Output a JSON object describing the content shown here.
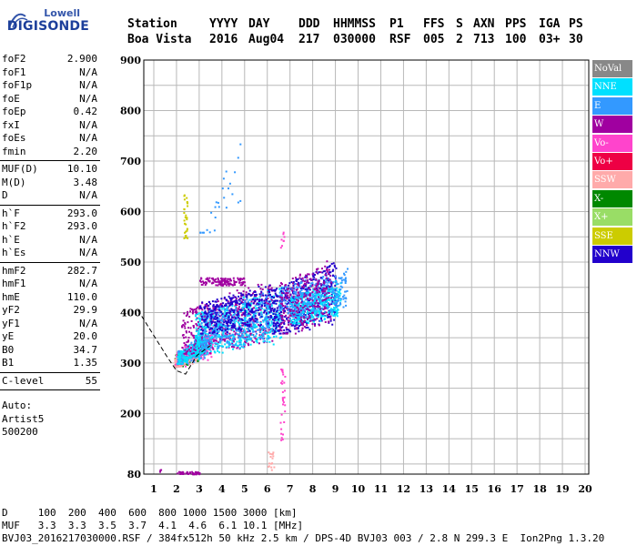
{
  "logo": {
    "line1": "Lowell",
    "line2": "DIGISONDE"
  },
  "header": {
    "row1": [
      "Station",
      "YYYY",
      "DAY",
      "DDD",
      "HHMMSS",
      "P1",
      "FFS",
      "S",
      "AXN",
      "PPS",
      "IGA",
      "PS"
    ],
    "row2": [
      "Boa Vista",
      "2016",
      "Aug04",
      "217",
      "030000",
      "RSF",
      "005",
      "2",
      "713",
      "100",
      "03+",
      "30"
    ]
  },
  "params": {
    "group1": [
      {
        "label": "foF2",
        "value": "2.900"
      },
      {
        "label": "foF1",
        "value": "N/A"
      },
      {
        "label": "foF1p",
        "value": "N/A"
      },
      {
        "label": "foE",
        "value": "N/A"
      },
      {
        "label": "foEp",
        "value": "0.42"
      },
      {
        "label": "fxI",
        "value": "N/A"
      },
      {
        "label": "foEs",
        "value": "N/A"
      },
      {
        "label": "fmin",
        "value": "2.20"
      }
    ],
    "group2": [
      {
        "label": "MUF(D)",
        "value": "10.10"
      },
      {
        "label": "M(D)",
        "value": "3.48"
      },
      {
        "label": "D",
        "value": "N/A"
      }
    ],
    "group3": [
      {
        "label": "h`F",
        "value": "293.0"
      },
      {
        "label": "h`F2",
        "value": "293.0"
      },
      {
        "label": "h`E",
        "value": "N/A"
      },
      {
        "label": "h`Es",
        "value": "N/A"
      }
    ],
    "group4": [
      {
        "label": "hmF2",
        "value": "282.7"
      },
      {
        "label": "hmF1",
        "value": "N/A"
      },
      {
        "label": "hmE",
        "value": "110.0"
      },
      {
        "label": "yF2",
        "value": "29.9"
      },
      {
        "label": "yF1",
        "value": "N/A"
      },
      {
        "label": "yE",
        "value": "20.0"
      },
      {
        "label": "B0",
        "value": "34.7"
      },
      {
        "label": "B1",
        "value": "1.35"
      }
    ],
    "group5": [
      {
        "label": "C-level",
        "value": "55"
      }
    ],
    "autoscale": {
      "line1": "Auto:",
      "line2": "Artist5",
      "line3": "500200"
    }
  },
  "legend": [
    {
      "label": "NoVal",
      "bg": "#888888",
      "fg": "#ffffff"
    },
    {
      "label": "NNE",
      "bg": "#00e0ff",
      "fg": "#ffffff"
    },
    {
      "label": "E",
      "bg": "#3399ff",
      "fg": "#ffffff"
    },
    {
      "label": "W",
      "bg": "#a000a0",
      "fg": "#ffffff"
    },
    {
      "label": "Vo-",
      "bg": "#ff44cc",
      "fg": "#ffffff"
    },
    {
      "label": "Vo+",
      "bg": "#ee0044",
      "fg": "#ffffff"
    },
    {
      "label": "SSW",
      "bg": "#ffaaaa",
      "fg": "#ffffff"
    },
    {
      "label": "X-",
      "bg": "#008800",
      "fg": "#ffffff"
    },
    {
      "label": "X+",
      "bg": "#99dd66",
      "fg": "#ffffff"
    },
    {
      "label": "SSE",
      "bg": "#cccc00",
      "fg": "#ffffff"
    },
    {
      "label": "NNW",
      "bg": "#2200cc",
      "fg": "#ffffff"
    }
  ],
  "footer": {
    "line1": "D     100  200  400  600  800 1000 1500 3000 [km]",
    "line2": "MUF   3.3  3.3  3.5  3.7  4.1  4.6  6.1 10.1 [MHz]",
    "line3": "BVJ03_2016217030000.RSF / 384fx512h 50 kHz 2.5 km / DPS-4D BVJ03 003 / 2.8 N 299.3 E  Ion2Png 1.3.20"
  },
  "chart_data": {
    "type": "scatter",
    "title": "",
    "xlabel": "",
    "ylabel": "",
    "xlim": [
      1,
      20
    ],
    "ylim": [
      80,
      900
    ],
    "xticks": [
      1,
      2,
      3,
      4,
      5,
      6,
      7,
      8,
      9,
      10,
      11,
      12,
      13,
      14,
      15,
      16,
      17,
      18,
      19,
      20
    ],
    "yticks": [
      80,
      200,
      300,
      400,
      500,
      600,
      700,
      800,
      900
    ],
    "grid": true,
    "legend_position": "right",
    "clusters": [
      {
        "series": "X-",
        "x": [
          1.9,
          3.2
        ],
        "y": [
          295,
          360
        ],
        "n": 160,
        "trend": 0.55
      },
      {
        "series": "Vo-",
        "x": [
          1.9,
          3.6
        ],
        "y": [
          295,
          380
        ],
        "n": 220,
        "trend": 0.55
      },
      {
        "series": "SSW",
        "x": [
          1.9,
          3.0
        ],
        "y": [
          295,
          340
        ],
        "n": 120,
        "trend": 0.5
      },
      {
        "series": "E",
        "x": [
          2.0,
          3.4
        ],
        "y": [
          300,
          370
        ],
        "n": 200,
        "trend": 0.55
      },
      {
        "series": "NNE",
        "x": [
          2.0,
          3.2
        ],
        "y": [
          300,
          360
        ],
        "n": 160,
        "trend": 0.55
      },
      {
        "series": "W",
        "x": [
          2.2,
          6.2
        ],
        "y": [
          320,
          470
        ],
        "n": 520,
        "trend": 0.35
      },
      {
        "series": "NNE",
        "x": [
          2.8,
          6.6
        ],
        "y": [
          320,
          460
        ],
        "n": 520,
        "trend": 0.35
      },
      {
        "series": "E",
        "x": [
          3.0,
          6.2
        ],
        "y": [
          330,
          450
        ],
        "n": 300,
        "trend": 0.35
      },
      {
        "series": "NNW",
        "x": [
          3.0,
          6.2
        ],
        "y": [
          360,
          460
        ],
        "n": 320,
        "trend": 0.3
      },
      {
        "series": "NNW",
        "x": [
          6.2,
          9.0
        ],
        "y": [
          360,
          510
        ],
        "n": 520,
        "trend": 0.35
      },
      {
        "series": "NNE",
        "x": [
          7.0,
          9.2
        ],
        "y": [
          380,
          470
        ],
        "n": 380,
        "trend": 0.35
      },
      {
        "series": "E",
        "x": [
          6.5,
          9.5
        ],
        "y": [
          390,
          490
        ],
        "n": 260,
        "trend": 0.3
      },
      {
        "series": "W",
        "x": [
          6.5,
          8.8
        ],
        "y": [
          360,
          520
        ],
        "n": 240,
        "trend": 0.3
      },
      {
        "series": "W",
        "x": [
          3.0,
          5.0
        ],
        "y": [
          455,
          470
        ],
        "n": 120,
        "trend": 0
      },
      {
        "series": "SSE",
        "x": [
          2.3,
          2.45
        ],
        "y": [
          545,
          635
        ],
        "n": 30,
        "trend": 0
      },
      {
        "series": "E",
        "x": [
          3.0,
          4.8
        ],
        "y": [
          560,
          735
        ],
        "n": 26,
        "trend": 0.8
      },
      {
        "series": "Vo-",
        "x": [
          6.55,
          6.75
        ],
        "y": [
          140,
          290
        ],
        "n": 30,
        "trend": 0
      },
      {
        "series": "Vo-",
        "x": [
          6.55,
          6.75
        ],
        "y": [
          530,
          565
        ],
        "n": 8,
        "trend": 0
      },
      {
        "series": "SSW",
        "x": [
          6.0,
          6.3
        ],
        "y": [
          84,
          125
        ],
        "n": 16,
        "trend": 0
      },
      {
        "series": "W",
        "x": [
          2.0,
          3.0
        ],
        "y": [
          81,
          86
        ],
        "n": 45,
        "trend": 0
      },
      {
        "series": "W",
        "x": [
          1.2,
          1.3
        ],
        "y": [
          85,
          90
        ],
        "n": 3,
        "trend": 0
      }
    ],
    "profile_line": [
      [
        0.3,
        405
      ],
      [
        1.55,
        315
      ],
      [
        2.0,
        285
      ],
      [
        2.4,
        278
      ],
      [
        2.9,
        315
      ],
      [
        3.5,
        335
      ]
    ]
  }
}
